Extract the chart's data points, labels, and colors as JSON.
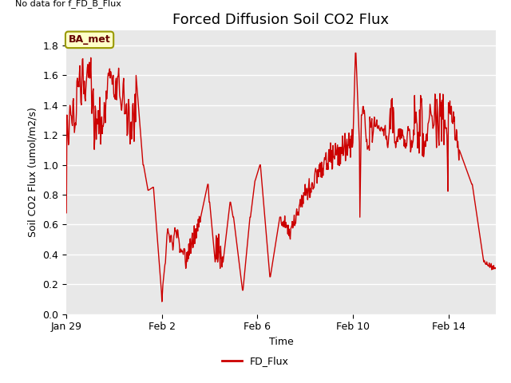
{
  "title": "Forced Diffusion Soil CO2 Flux",
  "top_left_text": "No data for f_FD_B_Flux",
  "xlabel": "Time",
  "ylabel": "Soil CO2 Flux (umol/m2/s)",
  "ylim": [
    0.0,
    1.9
  ],
  "yticks": [
    0.0,
    0.2,
    0.4,
    0.6,
    0.8,
    1.0,
    1.2,
    1.4,
    1.6,
    1.8
  ],
  "line_color": "#cc0000",
  "line_width": 1.0,
  "legend_label": "FD_Flux",
  "legend_line_color": "#cc0000",
  "bg_color": "#ffffff",
  "plot_bg_color": "#e8e8e8",
  "grid_color": "#ffffff",
  "box_label": "BA_met",
  "box_facecolor": "#ffffc8",
  "box_edgecolor": "#999900",
  "title_fontsize": 13,
  "label_fontsize": 9,
  "tick_fontsize": 9,
  "x_tick_labels": [
    "Jan 29",
    "Feb 2",
    "Feb 6",
    "Feb 10",
    "Feb 14"
  ],
  "figsize": [
    6.4,
    4.8
  ],
  "dpi": 100
}
